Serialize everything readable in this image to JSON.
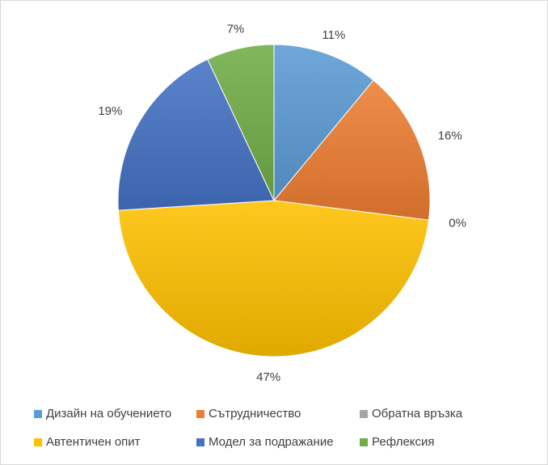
{
  "chart_data": {
    "type": "pie",
    "title": "",
    "series": [
      {
        "name": "Дизайн на обучението",
        "value": 11,
        "label": "11%",
        "color": "#5b9bd5"
      },
      {
        "name": "Сътрудничество",
        "value": 16,
        "label": "16%",
        "color": "#ed7d31"
      },
      {
        "name": "Обратна връзка",
        "value": 0,
        "label": "0%",
        "color": "#a5a5a5"
      },
      {
        "name": "Автентичен опит",
        "value": 47,
        "label": "47%",
        "color": "#ffc000"
      },
      {
        "name": "Модел за подражание",
        "value": 19,
        "label": "19%",
        "color": "#4472c4"
      },
      {
        "name": "Рефлексия",
        "value": 7,
        "label": "7%",
        "color": "#70ad47"
      }
    ],
    "legend_position": "bottom"
  }
}
